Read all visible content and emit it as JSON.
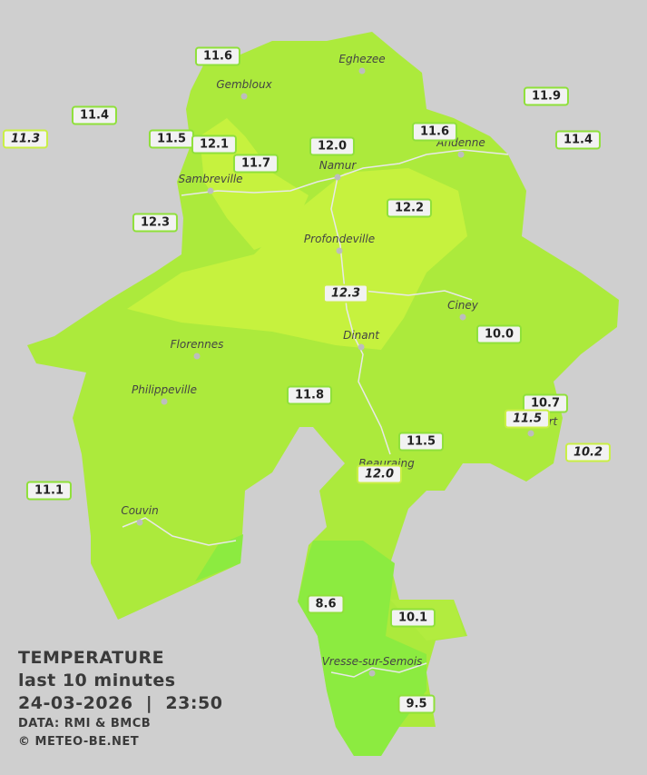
{
  "stations": [
    {
      "value": "11.6",
      "italic": false
    },
    {
      "value": "11.4",
      "italic": false
    },
    {
      "value": "11.3",
      "italic": true
    },
    {
      "value": "11.5",
      "italic": false
    },
    {
      "value": "12.1",
      "italic": false
    },
    {
      "value": "11.7",
      "italic": false
    },
    {
      "value": "12.0",
      "italic": false
    },
    {
      "value": "11.6",
      "italic": false
    },
    {
      "value": "11.9",
      "italic": false
    },
    {
      "value": "11.4",
      "italic": false
    },
    {
      "value": "12.3",
      "italic": false
    },
    {
      "value": "12.2",
      "italic": false
    },
    {
      "value": "12.3",
      "italic": true
    },
    {
      "value": "10.0",
      "italic": false
    },
    {
      "value": "11.8",
      "italic": false
    },
    {
      "value": "10.7",
      "italic": false
    },
    {
      "value": "11.5",
      "italic": true
    },
    {
      "value": "10.2",
      "italic": true
    },
    {
      "value": "11.5",
      "italic": false
    },
    {
      "value": "12.0",
      "italic": true
    },
    {
      "value": "11.1",
      "italic": false
    },
    {
      "value": "8.6",
      "italic": false
    },
    {
      "value": "10.1",
      "italic": false
    },
    {
      "value": "9.5",
      "italic": false
    }
  ],
  "cities": [
    "Eghezee",
    "Gembloux",
    "Andenne",
    "Namur",
    "Sambreville",
    "Profondeville",
    "Ciney",
    "Dinant",
    "Florennes",
    "Philippeville",
    "Rochefort",
    "Beauraing",
    "Couvin",
    "Vresse-sur-Semois"
  ],
  "legend": {
    "title": "TEMPERATURE",
    "period": "last 10 minutes",
    "datetime": "24-03-2026  |  23:50",
    "source": "DATA: RMI & BMCB",
    "copyright": "© METEO-BE.NET"
  }
}
